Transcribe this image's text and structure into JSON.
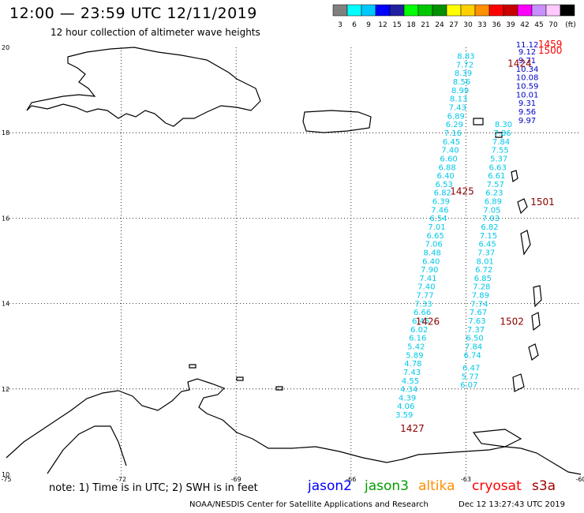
{
  "header": {
    "title": "12:00 — 23:59 UTC 12/11/2019",
    "subtitle": "12 hour collection of altimeter wave heights"
  },
  "legend": {
    "colors": [
      "#808080",
      "#00ffff",
      "#00c8ff",
      "#0000ff",
      "#2020a0",
      "#00ff00",
      "#00c800",
      "#009000",
      "#ffff00",
      "#ffd000",
      "#ff9000",
      "#ff0000",
      "#c80000",
      "#ff00ff",
      "#c890ff",
      "#ffc8ff",
      "#000000"
    ],
    "labels": [
      "3",
      "6",
      "9",
      "12",
      "15",
      "18",
      "21",
      "24",
      "27",
      "30",
      "33",
      "36",
      "39",
      "42",
      "45",
      "70",
      "(ft)"
    ]
  },
  "chart_data": {
    "type": "map",
    "xlim": [
      -75,
      -60
    ],
    "ylim": [
      10,
      20
    ],
    "x_ticks": [
      -75,
      -72,
      -69,
      -66,
      -63,
      -60
    ],
    "x_tick_labels": [
      "-75",
      "-72",
      "-69",
      "-66",
      "-63",
      "-60"
    ],
    "y_ticks": [
      10,
      12,
      14,
      16,
      18,
      20
    ],
    "y_tick_labels": [
      "10",
      "12",
      "14",
      "16",
      "18",
      "20"
    ],
    "grid": true,
    "tracks": [
      {
        "satellite": "jason3",
        "color": "#00c8e8",
        "points": [
          [
            -63.0,
            19.73,
            "8.83"
          ],
          [
            -63.03,
            19.53,
            "7.72"
          ],
          [
            -63.07,
            19.33,
            "8.39"
          ],
          [
            -63.11,
            19.13,
            "8.56"
          ],
          [
            -63.15,
            18.93,
            "8.99"
          ],
          [
            -63.19,
            18.73,
            "8.13"
          ],
          [
            -63.22,
            18.53,
            "7.43"
          ],
          [
            -63.26,
            18.33,
            "6.89"
          ],
          [
            -63.3,
            18.13,
            "6.29"
          ],
          [
            -63.34,
            17.93,
            "7.16"
          ],
          [
            -63.38,
            17.73,
            "6.45"
          ],
          [
            -63.41,
            17.53,
            "7.40"
          ],
          [
            -63.45,
            17.33,
            "6.60"
          ],
          [
            -63.49,
            17.13,
            "6.88"
          ],
          [
            -63.53,
            16.93,
            "6.40"
          ],
          [
            -63.57,
            16.73,
            "6.53"
          ],
          [
            -63.61,
            16.53,
            "6.82"
          ],
          [
            -63.65,
            16.33,
            "6.39"
          ],
          [
            -63.68,
            16.13,
            "7.46"
          ],
          [
            -63.72,
            15.93,
            "6.54"
          ],
          [
            -63.76,
            15.73,
            "7.01"
          ],
          [
            -63.8,
            15.53,
            "6.65"
          ],
          [
            -63.84,
            15.33,
            "7.06"
          ],
          [
            -63.88,
            15.13,
            "8.48"
          ],
          [
            -63.91,
            14.93,
            "6.40"
          ],
          [
            -63.95,
            14.73,
            "7.90"
          ],
          [
            -63.99,
            14.53,
            "7.41"
          ],
          [
            -64.03,
            14.33,
            "7.40"
          ],
          [
            -64.07,
            14.13,
            "7.77"
          ],
          [
            -64.11,
            13.93,
            "7.33"
          ],
          [
            -64.14,
            13.73,
            "6.66"
          ],
          [
            -64.18,
            13.53,
            "6.45"
          ],
          [
            -64.22,
            13.33,
            "6.02"
          ],
          [
            -64.26,
            13.13,
            "6.16"
          ],
          [
            -64.3,
            12.93,
            "5.42"
          ],
          [
            -64.34,
            12.73,
            "5.89"
          ],
          [
            -64.38,
            12.53,
            "4.78"
          ],
          [
            -64.41,
            12.33,
            "7.43"
          ],
          [
            -64.45,
            12.13,
            "4.55"
          ],
          [
            -64.49,
            11.93,
            "4.34"
          ],
          [
            -64.53,
            11.73,
            "4.39"
          ],
          [
            -64.57,
            11.53,
            "4.06"
          ],
          [
            -64.61,
            11.33,
            "3.59"
          ]
        ],
        "time_label": [
          -63.1,
          16.55,
          "1425"
        ],
        "time_label_2": [
          -64.0,
          13.5,
          "1426"
        ],
        "time_label_3": [
          -64.4,
          11.0,
          "1427"
        ]
      },
      {
        "satellite": "jason3",
        "color": "#00c8e8",
        "points": [
          [
            -62.02,
            18.13,
            "8.30"
          ],
          [
            -62.05,
            17.93,
            "7.86"
          ],
          [
            -62.08,
            17.73,
            "7.84"
          ],
          [
            -62.11,
            17.53,
            "7.55"
          ],
          [
            -62.14,
            17.33,
            "5.37"
          ],
          [
            -62.17,
            17.13,
            "6.63"
          ],
          [
            -62.2,
            16.93,
            "6.61"
          ],
          [
            -62.23,
            16.73,
            "7.57"
          ],
          [
            -62.26,
            16.53,
            "6.23"
          ],
          [
            -62.29,
            16.33,
            "6.89"
          ],
          [
            -62.32,
            16.13,
            "7.05"
          ],
          [
            -62.35,
            15.93,
            "7.03"
          ],
          [
            -62.38,
            15.73,
            "6.82"
          ],
          [
            -62.41,
            15.53,
            "7.15"
          ],
          [
            -62.44,
            15.33,
            "6.45"
          ],
          [
            -62.47,
            15.13,
            "7.37"
          ],
          [
            -62.5,
            14.93,
            "8.01"
          ],
          [
            -62.53,
            14.73,
            "6.72"
          ],
          [
            -62.56,
            14.53,
            "6.85"
          ],
          [
            -62.59,
            14.33,
            "7.28"
          ],
          [
            -62.62,
            14.13,
            "7.89"
          ],
          [
            -62.65,
            13.93,
            "7.74"
          ],
          [
            -62.68,
            13.73,
            "7.67"
          ],
          [
            -62.71,
            13.53,
            "7.63"
          ],
          [
            -62.74,
            13.33,
            "7.37"
          ],
          [
            -62.77,
            13.13,
            "6.50"
          ],
          [
            -62.8,
            12.93,
            "7.84"
          ],
          [
            -62.83,
            12.73,
            "6.74"
          ],
          [
            -62.86,
            12.43,
            "6.47"
          ],
          [
            -62.89,
            12.23,
            "5.77"
          ],
          [
            -62.92,
            12.03,
            "6.07"
          ]
        ],
        "time_label": [
          -61.8,
          13.5,
          "1502"
        ]
      },
      {
        "satellite": "jason2",
        "color": "#0000c8",
        "points": [
          [
            -61.4,
            20.0,
            "11.12"
          ],
          [
            -61.4,
            19.83,
            "9.12"
          ],
          [
            -61.4,
            19.63,
            "9.71"
          ],
          [
            -61.4,
            19.43,
            "10.34"
          ],
          [
            -61.4,
            19.23,
            "10.08"
          ],
          [
            -61.4,
            19.03,
            "10.59"
          ],
          [
            -61.4,
            18.83,
            "10.01"
          ],
          [
            -61.4,
            18.63,
            "9.31"
          ],
          [
            -61.4,
            18.43,
            "9.56"
          ],
          [
            -61.4,
            18.23,
            "9.97"
          ]
        ]
      }
    ],
    "time_labels_other": [
      [
        -60.8,
        20.0,
        "1459",
        "#ff0000"
      ],
      [
        -60.8,
        19.85,
        "1500",
        "#ff0000"
      ],
      [
        -61.6,
        19.55,
        "1424",
        "#8b0000"
      ],
      [
        -61.0,
        16.3,
        "1501",
        "#8b0000"
      ]
    ]
  },
  "footer": {
    "note": "note: 1) Time is in UTC; 2) SWH is in feet",
    "satellites": [
      {
        "name": "jason2",
        "color": "#0000ff"
      },
      {
        "name": "jason3",
        "color": "#00a000"
      },
      {
        "name": "altika",
        "color": "#ff9000"
      },
      {
        "name": "cryosat",
        "color": "#ff0000"
      },
      {
        "name": "s3a",
        "color": "#a00000"
      }
    ],
    "credit": "NOAA/NESDIS Center for Satellite Applications and Research",
    "timestamp": "Dec 12 13:27:43 UTC 2019"
  }
}
